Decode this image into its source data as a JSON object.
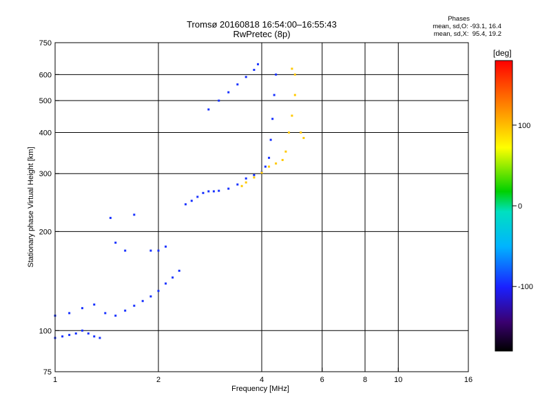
{
  "title_line1": "Tromsø 20160818 16:54:00–16:55:43",
  "title_line2": "RwPretec (8p)",
  "phases": {
    "header": "Phases",
    "o_line": "mean, sd,O: -93.1, 16.4",
    "x_line": "mean, sd,X:  95.4, 19.2"
  },
  "colorbar": {
    "title": "[deg]",
    "range": [
      -180,
      180
    ],
    "ticks": [
      {
        "v": 100,
        "label": "100"
      },
      {
        "v": 0,
        "label": "0"
      },
      {
        "v": -100,
        "label": "-100"
      }
    ]
  },
  "chart_data": {
    "type": "scatter",
    "xlabel": "Frequency [MHz]",
    "ylabel": "Stationary phase Virtual Height [km]",
    "xscale": "log",
    "yscale": "log",
    "xlim": [
      1,
      16
    ],
    "ylim": [
      75,
      750
    ],
    "xticks": [
      {
        "v": 1,
        "label": "1"
      },
      {
        "v": 2,
        "label": "2"
      },
      {
        "v": 4,
        "label": "4"
      },
      {
        "v": 6,
        "label": "6"
      },
      {
        "v": 8,
        "label": "8"
      },
      {
        "v": 10,
        "label": "10"
      },
      {
        "v": 16,
        "label": "16"
      }
    ],
    "yticks": [
      {
        "v": 75,
        "label": "75"
      },
      {
        "v": 100,
        "label": "100"
      },
      {
        "v": 200,
        "label": "200"
      },
      {
        "v": 300,
        "label": "300"
      },
      {
        "v": 400,
        "label": "400"
      },
      {
        "v": 500,
        "label": "500"
      },
      {
        "v": 600,
        "label": "600"
      },
      {
        "v": 750,
        "label": "750"
      }
    ],
    "grid_x": [
      2,
      4,
      6,
      8,
      10
    ],
    "grid_y": [
      100,
      200,
      300,
      400,
      500,
      600
    ],
    "color_by": "phase_deg",
    "series": [
      {
        "points": [
          [
            1.0,
            95
          ],
          [
            1.05,
            96
          ],
          [
            1.1,
            97
          ],
          [
            1.15,
            98
          ],
          [
            1.2,
            100
          ],
          [
            1.25,
            98
          ],
          [
            1.3,
            96
          ],
          [
            1.35,
            95
          ],
          [
            1.0,
            111
          ],
          [
            1.1,
            113
          ],
          [
            1.2,
            117
          ],
          [
            1.3,
            120
          ],
          [
            1.4,
            113
          ],
          [
            1.5,
            111
          ],
          [
            1.6,
            115
          ],
          [
            1.7,
            119
          ],
          [
            1.8,
            123
          ],
          [
            1.9,
            127
          ],
          [
            2.0,
            132
          ],
          [
            2.1,
            139
          ],
          [
            2.2,
            145
          ],
          [
            2.3,
            152
          ],
          [
            2.4,
            242
          ],
          [
            2.5,
            248
          ],
          [
            2.6,
            255
          ],
          [
            2.7,
            262
          ],
          [
            2.8,
            265
          ],
          [
            2.9,
            265
          ],
          [
            3.0,
            266
          ],
          [
            3.2,
            270
          ],
          [
            3.4,
            278
          ],
          [
            3.6,
            290
          ],
          [
            3.8,
            297
          ],
          [
            4.0,
            303
          ],
          [
            4.1,
            315
          ],
          [
            4.2,
            335
          ],
          [
            4.25,
            380
          ],
          [
            4.3,
            440
          ],
          [
            4.35,
            520
          ],
          [
            4.4,
            600
          ],
          [
            2.8,
            470
          ],
          [
            3.0,
            500
          ],
          [
            3.2,
            530
          ],
          [
            3.4,
            560
          ],
          [
            3.6,
            590
          ],
          [
            3.8,
            620
          ],
          [
            3.9,
            645
          ],
          [
            1.45,
            220
          ],
          [
            1.5,
            185
          ],
          [
            1.6,
            175
          ],
          [
            1.7,
            225
          ],
          [
            1.9,
            175
          ],
          [
            2.0,
            175
          ],
          [
            2.1,
            180
          ]
        ],
        "values": [
          -95
        ]
      },
      {
        "points": [
          [
            3.5,
            275
          ],
          [
            3.6,
            282
          ],
          [
            3.8,
            292
          ],
          [
            4.0,
            302
          ],
          [
            4.2,
            315
          ],
          [
            4.4,
            322
          ],
          [
            4.6,
            330
          ],
          [
            4.7,
            350
          ],
          [
            4.8,
            400
          ],
          [
            4.9,
            450
          ],
          [
            5.0,
            520
          ],
          [
            5.0,
            600
          ],
          [
            4.9,
            625
          ],
          [
            5.2,
            400
          ],
          [
            5.3,
            385
          ]
        ],
        "values": [
          95
        ]
      }
    ]
  }
}
